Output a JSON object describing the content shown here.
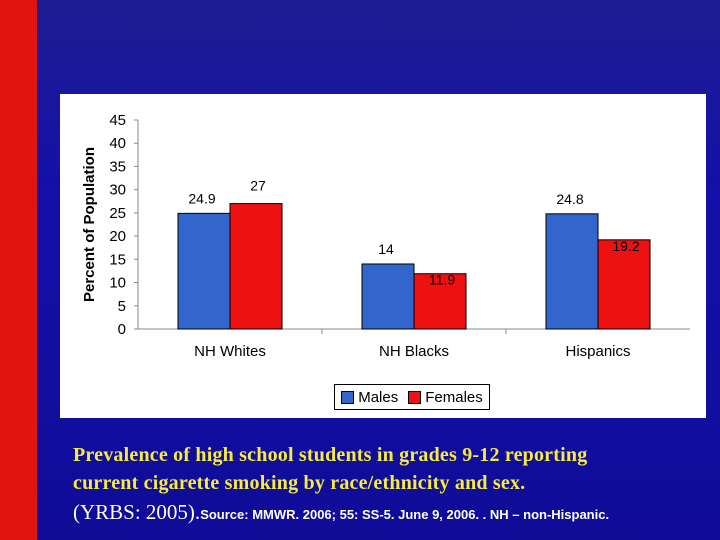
{
  "chart_data": {
    "type": "bar",
    "categories": [
      "NH Whites",
      "NH Blacks",
      "Hispanics"
    ],
    "series": [
      {
        "name": "Males",
        "values": [
          24.9,
          14,
          24.8
        ],
        "labels": [
          "24.9",
          "14",
          "24.8"
        ],
        "color": "#3366cc"
      },
      {
        "name": "Females",
        "values": [
          27,
          11.9,
          19.2
        ],
        "labels": [
          "27",
          "11.9",
          "19.2"
        ],
        "color": "#ee1111"
      }
    ],
    "ylabel": "Percent of Population",
    "xlabel": "",
    "ylim": [
      0,
      45
    ],
    "yticks": [
      "0",
      "5",
      "10",
      "15",
      "20",
      "25",
      "30",
      "35",
      "40",
      "45"
    ],
    "grid": false,
    "legend_position": "bottom"
  },
  "caption": {
    "line1": "Prevalence of high school students in grades 9-12 reporting",
    "line2": "current cigarette smoking by race/ethnicity and sex.",
    "yrbs": "(YRBS: 2005).",
    "source": "Source: MMWR. 2006; 55: SS-5. June 9, 2006. . NH – non-Hispanic."
  },
  "colors": {
    "background": "#1410a8",
    "side_band": "#e1140f",
    "caption_text": "#f7ec3c"
  }
}
